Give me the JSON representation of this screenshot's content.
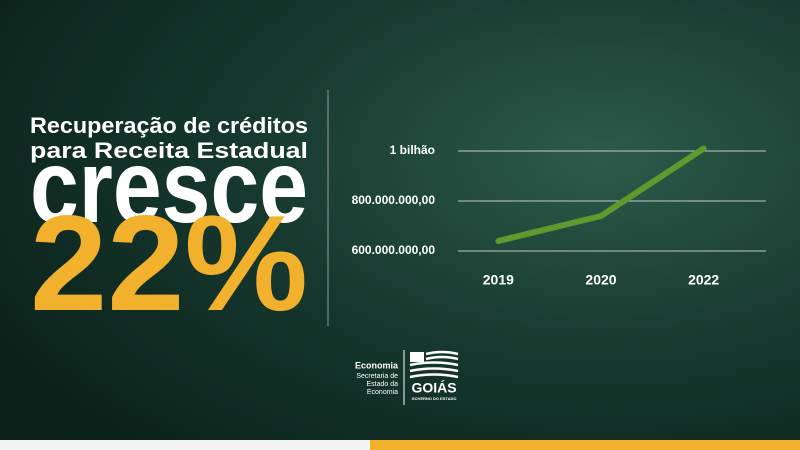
{
  "header": {
    "lines": [
      "Recuperação de créditos",
      "para Receita Estadual"
    ],
    "verb": "cresce",
    "figure": "22%"
  },
  "chart_data": {
    "type": "line",
    "categories": [
      "2019",
      "2020",
      "2022"
    ],
    "values": [
      640000000,
      740000000,
      1010000000
    ],
    "color": "#5f9a2c",
    "ylim": [
      560000000,
      1040000000
    ],
    "yticks": [
      {
        "value": 600000000,
        "label": "600.000.000,00"
      },
      {
        "value": 800000000,
        "label": "800.000.000,00"
      },
      {
        "value": 1000000000,
        "label": "1 bilhão"
      }
    ],
    "grid": true
  },
  "footer": {
    "agency": "Economia",
    "agency_lines": [
      "Secretaria de",
      "Estado da",
      "Economia"
    ],
    "state": "GOIÁS",
    "state_sub": "GOVERNO DO ESTADO"
  }
}
